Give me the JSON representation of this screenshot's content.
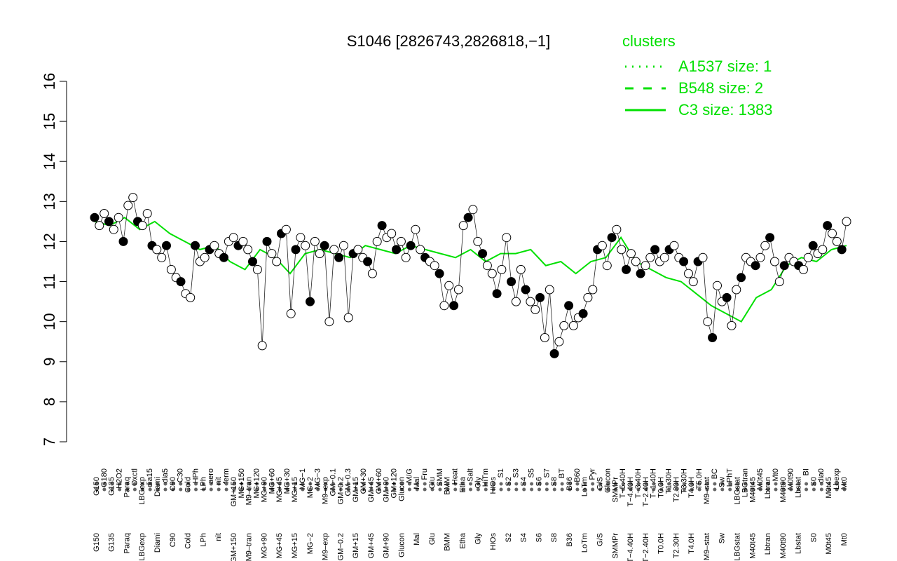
{
  "chart_data": {
    "type": "line",
    "title": "S1046 [2826743,2826818,−1]",
    "xlabel": "",
    "ylabel": "",
    "ylim": [
      7,
      16
    ],
    "yticks": [
      7,
      8,
      9,
      10,
      11,
      12,
      13,
      14,
      15,
      16
    ],
    "grid": false,
    "legend_position": "top-right",
    "legend": {
      "title": "clusters",
      "entries": [
        {
          "label": "A1537 size: 1",
          "style": "dotted"
        },
        {
          "label": "B548 size: 2",
          "style": "dashed"
        },
        {
          "label": "C3 size: 1383",
          "style": "solid"
        }
      ]
    },
    "x_labels": [
      "G150",
      "G180",
      "G135",
      "H2O2",
      "Paraq",
      "Oxctl",
      "LBGexp",
      "dia15",
      "Diami",
      "dia5",
      "C90",
      "C30",
      "Cold",
      "HPh",
      "LPh",
      "aero",
      "nit",
      "ferm",
      "GM+150",
      "MG+150",
      "M9–tran",
      "MG+120",
      "MG+90",
      "MG+60",
      "MG+45",
      "MG+30",
      "MG+15",
      "MG−1",
      "MG−2",
      "MG−3",
      "M9–exp",
      "GM−0.1",
      "GM−0.2",
      "GM−0.3",
      "GM+15",
      "GM+30",
      "GM+45",
      "GM+60",
      "GM+90",
      "GM+120",
      "Glucon",
      "M/G",
      "Mal",
      "Fru",
      "Glu",
      "SMM",
      "BMM",
      "Heat",
      "Etha",
      "Salt",
      "Gly",
      "HiTm",
      "HiOs",
      "S1",
      "S2",
      "S3",
      "S4",
      "S5",
      "S6",
      "S7",
      "S8",
      "BT",
      "B36",
      "B60",
      "LoTm",
      "Pyr",
      "G/S",
      "Glucon",
      "SMMPr",
      "T−5.40H",
      "T−4.40H",
      "T−3.40H",
      "T−2.40H",
      "T−1.40H",
      "T0.0H",
      "T1.30H",
      "T2.30H",
      "T3.30H",
      "T4.0H",
      "T5.0H",
      "M9–stat",
      "BC",
      "Sw",
      "LPhT",
      "LBGstat",
      "LBGtran",
      "M40t45",
      "M0t45",
      "Lbtran",
      "Mt0",
      "M40t90",
      "M0t90",
      "Lbstat",
      "BI",
      "S0",
      "dia0",
      "M0t45",
      "Lbexp",
      "Mt0"
    ],
    "series": [
      {
        "name": "C3 size: 1383",
        "style": "solid",
        "color": "#00e000",
        "x": [
          0.0,
          0.02,
          0.04,
          0.06,
          0.08,
          0.1,
          0.12,
          0.14,
          0.16,
          0.18,
          0.2,
          0.22,
          0.24,
          0.26,
          0.28,
          0.3,
          0.32,
          0.34,
          0.36,
          0.38,
          0.4,
          0.42,
          0.44,
          0.46,
          0.48,
          0.5,
          0.52,
          0.54,
          0.56,
          0.58,
          0.6,
          0.62,
          0.64,
          0.66,
          0.68,
          0.7,
          0.72,
          0.74,
          0.76,
          0.78,
          0.8,
          0.82,
          0.84,
          0.86,
          0.88,
          0.9,
          0.92,
          0.94,
          0.96,
          0.98,
          1.0
        ],
        "y": [
          12.5,
          12.4,
          12.6,
          12.3,
          12.5,
          12.2,
          12.0,
          11.8,
          11.9,
          11.5,
          11.3,
          11.8,
          11.6,
          11.2,
          11.7,
          11.8,
          11.7,
          11.6,
          11.9,
          11.8,
          11.7,
          11.9,
          11.8,
          11.7,
          11.6,
          11.8,
          11.5,
          11.7,
          11.7,
          11.8,
          11.4,
          11.5,
          11.2,
          11.5,
          11.6,
          12.1,
          11.5,
          11.3,
          11.1,
          11.0,
          10.7,
          10.4,
          10.2,
          10.0,
          10.6,
          10.8,
          11.4,
          11.6,
          11.5,
          11.8,
          11.9
        ]
      }
    ],
    "points_y": [
      12.6,
      12.4,
      12.7,
      12.5,
      12.3,
      12.6,
      12.0,
      12.9,
      13.1,
      12.5,
      12.4,
      12.7,
      11.9,
      11.8,
      11.6,
      11.9,
      11.3,
      11.1,
      11.0,
      10.7,
      10.6,
      11.9,
      11.5,
      11.6,
      11.8,
      11.9,
      11.7,
      11.6,
      12.0,
      12.1,
      11.9,
      12.0,
      11.8,
      11.5,
      11.3,
      9.4,
      12.0,
      11.7,
      11.5,
      12.2,
      12.3,
      10.2,
      11.8,
      12.1,
      11.9,
      10.5,
      12.0,
      11.7,
      11.9,
      10.0,
      11.8,
      11.6,
      11.9,
      10.1,
      11.7,
      11.8,
      11.6,
      11.5,
      11.2,
      12.0,
      12.4,
      12.1,
      12.2,
      11.8,
      12.0,
      11.6,
      11.9,
      12.3,
      11.8,
      11.6,
      11.5,
      11.4,
      11.2,
      10.4,
      10.9,
      10.4,
      10.8,
      12.4,
      12.6,
      12.8,
      12.0,
      11.7,
      11.4,
      11.2,
      10.7,
      11.3,
      12.1,
      11.0,
      10.5,
      11.3,
      10.8,
      10.5,
      10.3,
      10.6,
      9.6,
      10.8,
      9.2,
      9.5,
      9.9,
      10.4,
      9.9,
      10.1,
      10.2,
      10.6,
      10.8,
      11.8,
      11.9,
      11.4,
      12.1,
      12.3,
      11.8,
      11.3,
      11.7,
      11.5,
      11.2,
      11.4,
      11.6,
      11.8,
      11.5,
      11.6,
      11.8,
      11.9,
      11.6,
      11.5,
      11.2,
      11.0,
      11.5,
      11.6,
      10.0,
      9.6,
      10.9,
      10.5,
      10.6,
      9.9,
      10.8,
      11.1,
      11.6,
      11.5,
      11.4,
      11.6,
      11.9,
      12.1,
      11.5,
      11.0,
      11.4,
      11.6,
      11.5,
      11.4,
      11.3,
      11.6,
      11.9,
      11.7,
      11.8,
      12.4,
      12.2,
      12.0,
      11.8,
      12.5
    ]
  }
}
